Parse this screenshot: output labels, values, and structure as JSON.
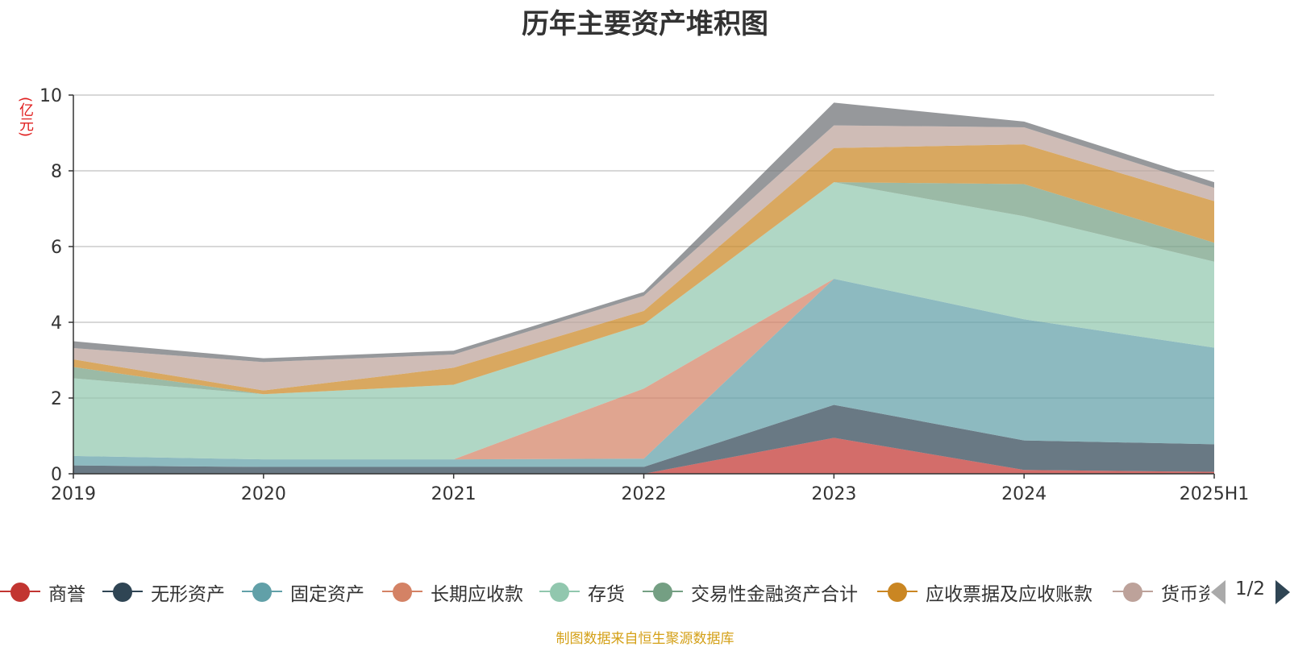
{
  "chart_data": {
    "type": "area",
    "stacked": true,
    "title": "历年主要资产堆积图",
    "unit_label": "(亿元)",
    "categories": [
      "2019",
      "2020",
      "2021",
      "2022",
      "2023",
      "2024",
      "2025H1"
    ],
    "ylim": [
      0,
      10
    ],
    "yticks": [
      0,
      2,
      4,
      6,
      8,
      10
    ],
    "grid": true,
    "legend_position": "bottom",
    "series": [
      {
        "name": "商誉",
        "color": "#c23531",
        "values": [
          0,
          0,
          0,
          0,
          0.95,
          0.1,
          0.05
        ]
      },
      {
        "name": "无形资产",
        "color": "#2f4554",
        "values": [
          0.22,
          0.18,
          0.18,
          0.18,
          0.87,
          0.78,
          0.73
        ]
      },
      {
        "name": "固定资产",
        "color": "#61a0a8",
        "values": [
          0.25,
          0.2,
          0.2,
          0.22,
          3.33,
          3.2,
          2.55
        ]
      },
      {
        "name": "长期应收款",
        "color": "#d48265",
        "values": [
          0,
          0,
          0,
          1.85,
          0,
          0,
          0
        ]
      },
      {
        "name": "存货",
        "color": "#91c7ae",
        "values": [
          2.05,
          1.72,
          1.97,
          1.7,
          2.55,
          2.72,
          2.27
        ]
      },
      {
        "name": "交易性金融资产合计",
        "color": "#749f83",
        "values": [
          0.3,
          0,
          0,
          0,
          0,
          0.85,
          0.5
        ]
      },
      {
        "name": "应收票据及应收账款",
        "color": "#ca8622",
        "values": [
          0.2,
          0.1,
          0.45,
          0.35,
          0.9,
          1.05,
          1.1
        ]
      },
      {
        "name": "货币资金",
        "color": "#bda29a",
        "values": [
          0.3,
          0.75,
          0.35,
          0.4,
          0.6,
          0.45,
          0.35
        ]
      },
      {
        "name": "",
        "color": "#6e7074",
        "values": [
          0.18,
          0.1,
          0.1,
          0.1,
          0.6,
          0.15,
          0.15
        ]
      }
    ],
    "legend_visible_count": 8
  },
  "legend_pager": {
    "text": "1/2"
  },
  "source_note": "制图数据来自恒生聚源数据库"
}
